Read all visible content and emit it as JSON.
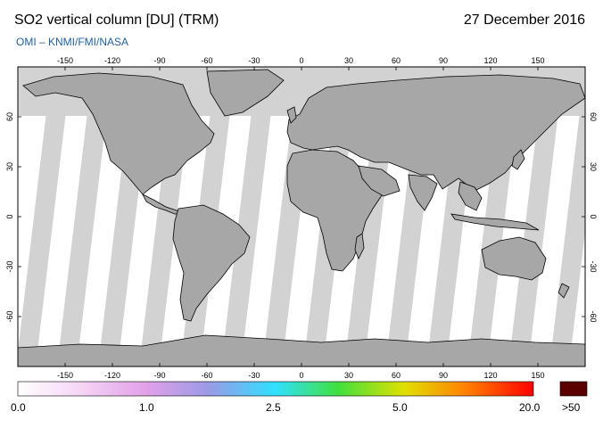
{
  "header": {
    "title": "SO2 vertical column [DU] (TRM)",
    "date": "27 December 2016",
    "credit": "OMI  –  KNMI/FMI/NASA"
  },
  "map": {
    "lon_ticks": [
      "-150",
      "-120",
      "-90",
      "-60",
      "-30",
      "0",
      "30",
      "60",
      "90",
      "120",
      "150"
    ],
    "lat_ticks": [
      "60",
      "30",
      "0",
      "-30",
      "-60"
    ],
    "colors": {
      "ocean": "#ffffff",
      "land": "#a7a7a7",
      "swath": "#d2d2d2",
      "polar_night": "#d2d2d2",
      "coast": "#000000"
    }
  },
  "colorbar": {
    "labels": [
      "0.0",
      "1.0",
      "2.5",
      "5.0",
      "20.0"
    ],
    "overflow_label": ">50",
    "overflow_color": "#5a0000",
    "gradient_colors": [
      "#ffffff",
      "#f6d6f6",
      "#e0a0e8",
      "#9a9ae6",
      "#30e0ff",
      "#40e040",
      "#e0e000",
      "#ff8000",
      "#ff0000"
    ]
  }
}
